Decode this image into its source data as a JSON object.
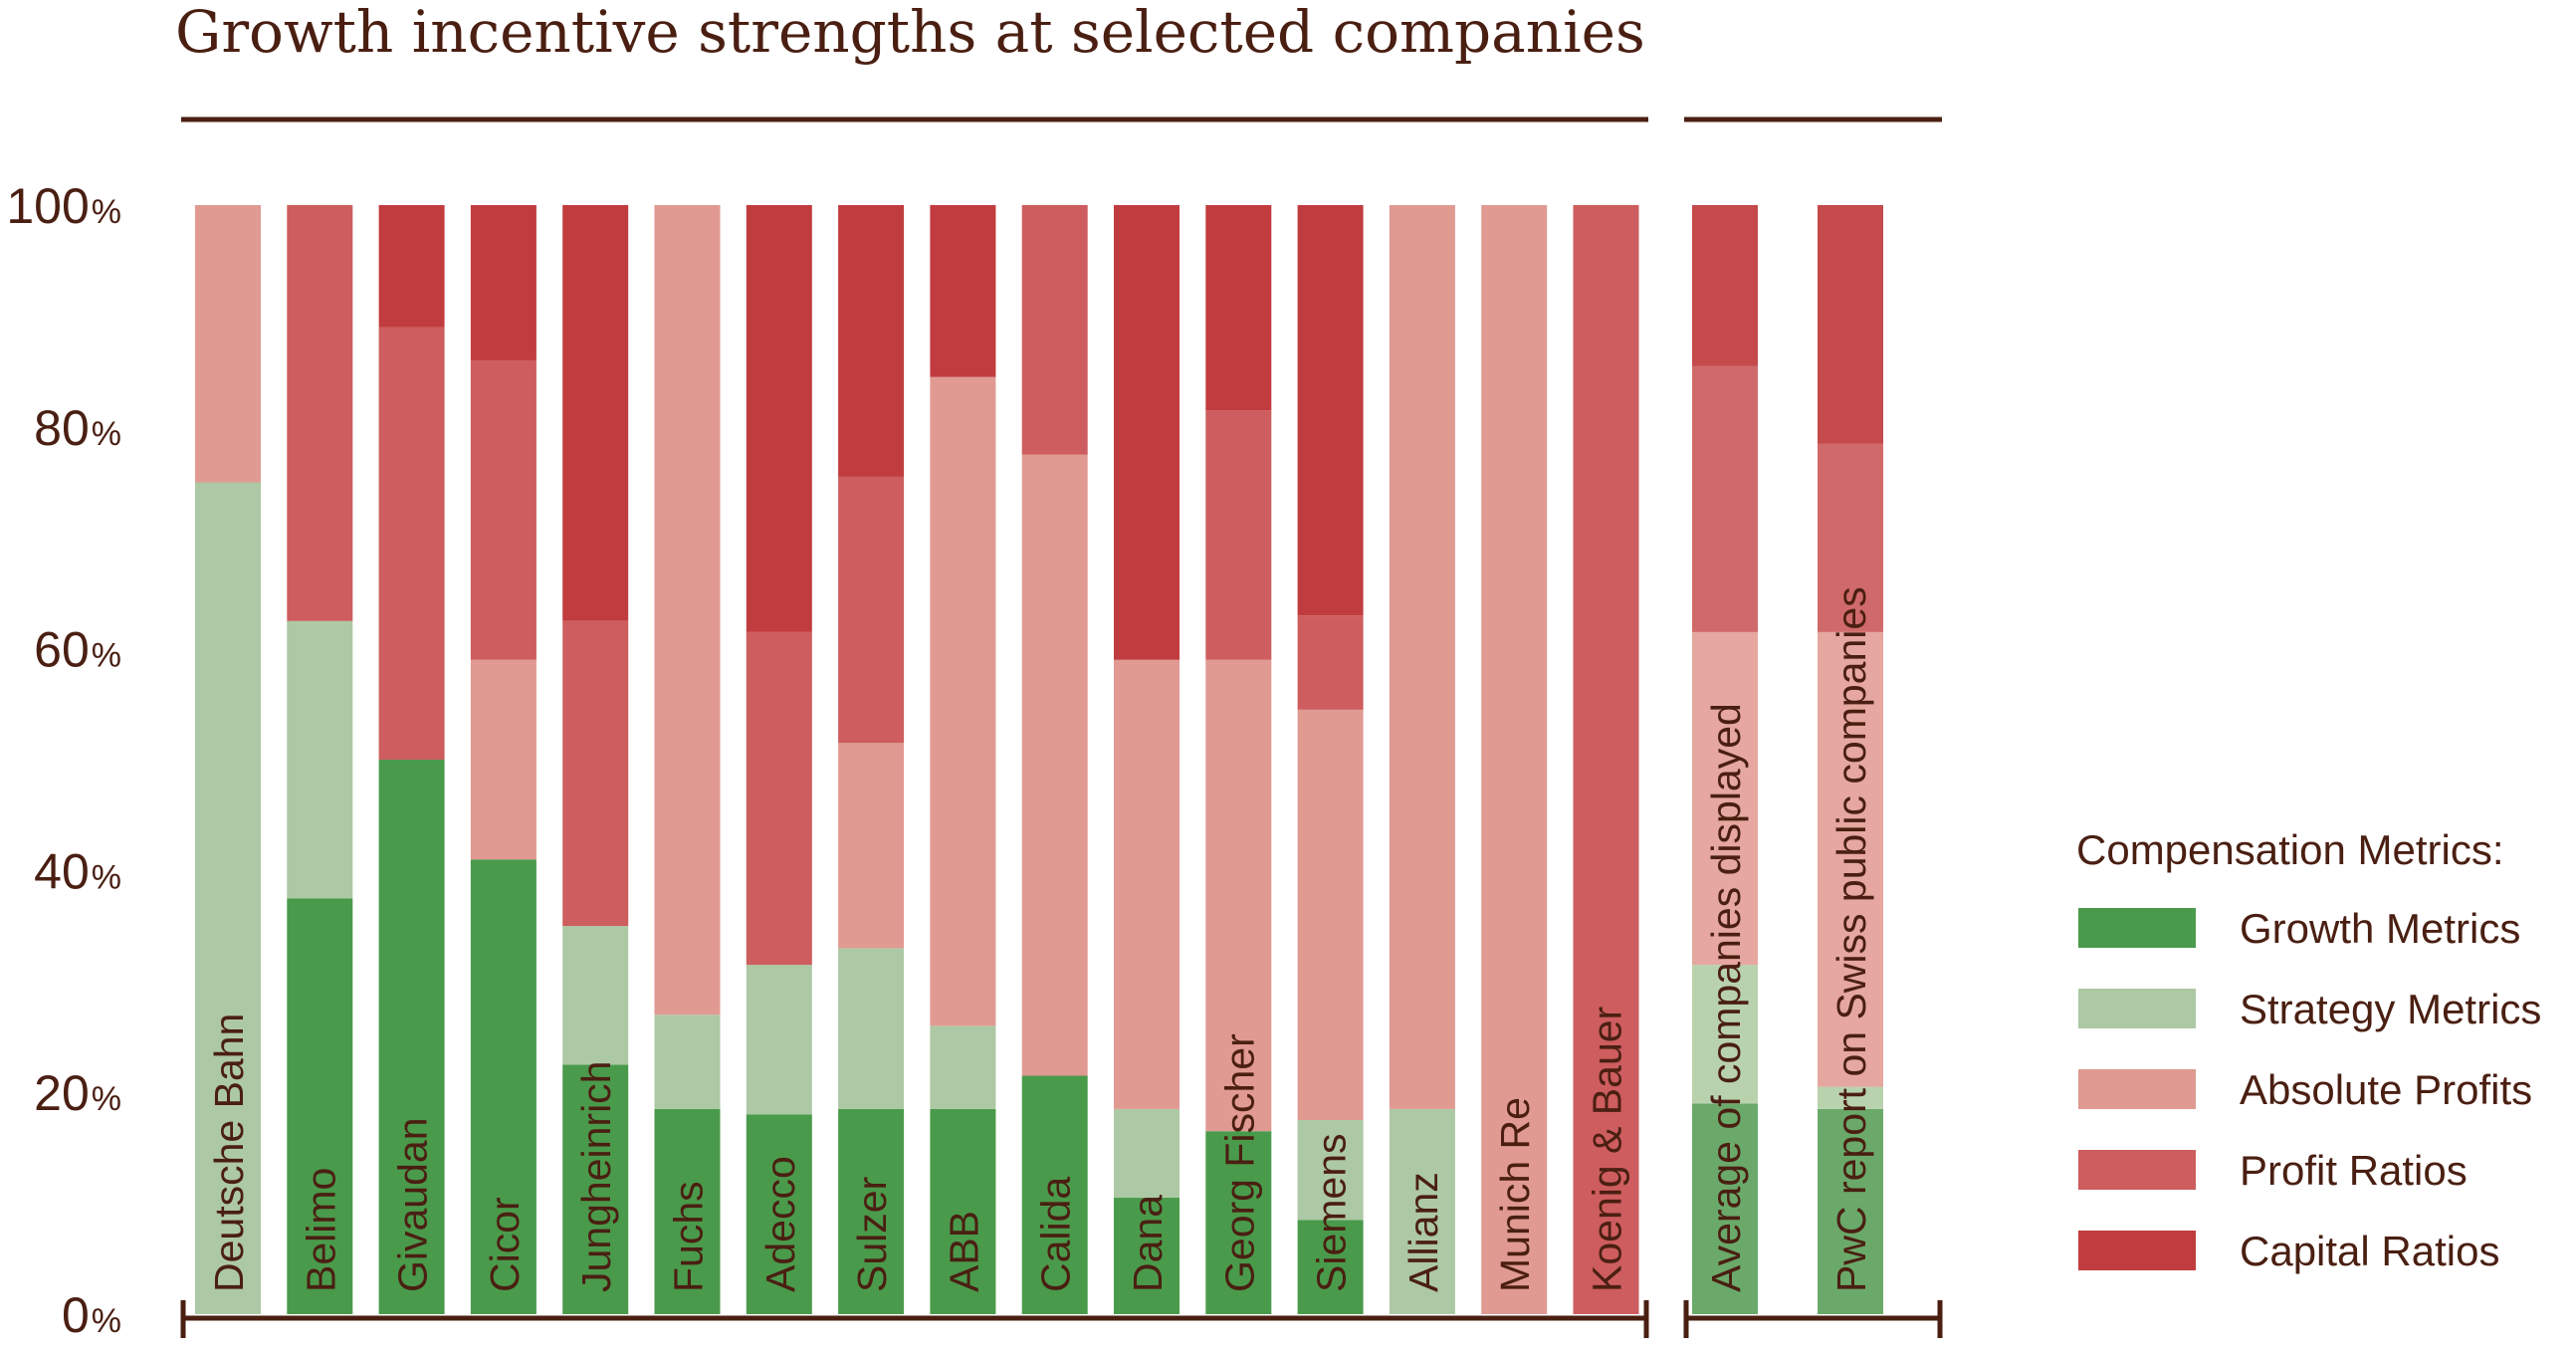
{
  "chart_data": {
    "type": "bar",
    "stacked": true,
    "title": "Growth incentive strengths at selected companies",
    "ylim": [
      0,
      100
    ],
    "yticks": [
      {
        "value": 0,
        "num": "0",
        "unit": "%"
      },
      {
        "value": 20,
        "num": "20",
        "unit": "%"
      },
      {
        "value": 40,
        "num": "40",
        "unit": "%"
      },
      {
        "value": 60,
        "num": "60",
        "unit": "%"
      },
      {
        "value": 80,
        "num": "80",
        "unit": "%"
      },
      {
        "value": 100,
        "num": "100",
        "unit": "%"
      }
    ],
    "legend": {
      "title": "Compensation Metrics:",
      "placement": "right",
      "items": [
        {
          "label": "Growth Metrics",
          "color": "#4a9a4b"
        },
        {
          "label": "Strategy Metrics",
          "color": "#adc8a4"
        },
        {
          "label": "Absolute Profits",
          "color": "#e09a92"
        },
        {
          "label": "Profit Ratios",
          "color": "#cd5d5e"
        },
        {
          "label": "Capital Ratios",
          "color": "#c13c3f"
        }
      ]
    },
    "groups": [
      {
        "categories": [
          "Deutsche Bahn",
          "Belimo",
          "Givaudan",
          "Cicor",
          "Jungheinrich",
          "Fuchs",
          "Adecco",
          "Sulzer",
          "ABB",
          "Calida",
          "Dana",
          "Georg Fischer",
          "Siemens",
          "Allianz",
          "Munich Re",
          "Koenig & Bauer"
        ]
      },
      {
        "categories": [
          "Average of companies displayed",
          "PwC report on Swiss public companies"
        ]
      }
    ],
    "group2_colors": [
      "#6aa96a",
      "#b9d2ae",
      "#e5a79f",
      "#d06a6a",
      "#c44a4c"
    ],
    "series": [
      {
        "name": "Growth Metrics",
        "values": [
          0,
          37.5,
          50,
          41,
          22.5,
          18.5,
          18,
          18.5,
          18.5,
          21.5,
          10.5,
          16.5,
          8.5,
          0,
          0,
          0,
          19,
          18.5
        ]
      },
      {
        "name": "Strategy Metrics",
        "values": [
          75,
          25,
          0,
          0,
          12.5,
          8.5,
          13.5,
          14.5,
          7.5,
          0,
          8,
          0,
          9,
          18.5,
          0,
          0,
          12.5,
          2
        ]
      },
      {
        "name": "Absolute Profits",
        "values": [
          25,
          0,
          0,
          18,
          0,
          73,
          0,
          18.5,
          58.5,
          56,
          40.5,
          42.5,
          37,
          81.5,
          100,
          0,
          30,
          41
        ]
      },
      {
        "name": "Profit Ratios",
        "values": [
          0,
          37.5,
          39,
          27,
          27.5,
          0,
          30,
          24,
          0,
          22.5,
          0,
          22.5,
          8.5,
          0,
          0,
          100,
          24,
          17
        ]
      },
      {
        "name": "Capital Ratios",
        "values": [
          0,
          0,
          11,
          14,
          37.5,
          0,
          38.5,
          24.5,
          15.5,
          0,
          41,
          18.5,
          37,
          0,
          0,
          0,
          14.5,
          21.5
        ]
      }
    ]
  }
}
